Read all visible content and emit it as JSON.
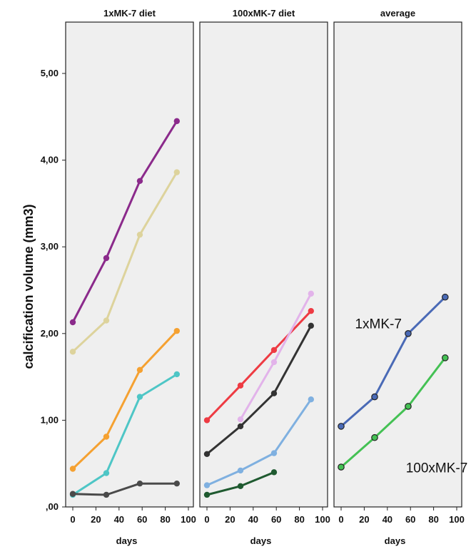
{
  "chart_data": {
    "type": "line",
    "ylabel": "calcification volume (mm3)",
    "ylim": [
      0,
      5.6
    ],
    "yticks": [
      0,
      1,
      2,
      3,
      4,
      5
    ],
    "ytick_labels": [
      ",00",
      "1,00",
      "2,00",
      "3,00",
      "4,00",
      "5,00"
    ],
    "xlim": [
      -5,
      103
    ],
    "xticks": [
      0,
      20,
      40,
      60,
      80,
      100
    ],
    "xtick_labels": [
      "0",
      "20",
      "40",
      "60",
      "80",
      "100"
    ],
    "grid": false,
    "panels": [
      {
        "title": "1xMK-7 diet",
        "xlabel": "days",
        "annotations": [],
        "series": [
          {
            "color": "#8b2a8b",
            "x": [
              0,
              29,
              58,
              90
            ],
            "y": [
              2.13,
              2.87,
              3.76,
              4.45
            ]
          },
          {
            "color": "#ddd39c",
            "x": [
              0,
              29,
              58,
              90
            ],
            "y": [
              1.79,
              2.15,
              3.14,
              3.86
            ]
          },
          {
            "color": "#f5a131",
            "x": [
              0,
              29,
              58,
              90
            ],
            "y": [
              0.44,
              0.81,
              1.58,
              2.03
            ]
          },
          {
            "color": "#4ec6c6",
            "x": [
              0,
              29,
              58,
              90
            ],
            "y": [
              0.14,
              0.39,
              1.27,
              1.53
            ]
          },
          {
            "color": "#4a4a4a",
            "x": [
              0,
              29,
              58,
              90
            ],
            "y": [
              0.15,
              0.14,
              0.27,
              0.27
            ]
          }
        ]
      },
      {
        "title": "100xMK-7 diet",
        "xlabel": "days",
        "annotations": [],
        "series": [
          {
            "color": "#ee3b43",
            "x": [
              0,
              29,
              58,
              90
            ],
            "y": [
              1.0,
              1.4,
              1.81,
              2.26
            ]
          },
          {
            "color": "#e2b3ea",
            "x": [
              29,
              58,
              90
            ],
            "y": [
              1.01,
              1.67,
              2.46
            ]
          },
          {
            "color": "#333333",
            "x": [
              0,
              29,
              58,
              90
            ],
            "y": [
              0.61,
              0.93,
              1.31,
              2.09
            ]
          },
          {
            "color": "#7fb0e0",
            "x": [
              0,
              29,
              58,
              90
            ],
            "y": [
              0.25,
              0.42,
              0.62,
              1.24
            ]
          },
          {
            "color": "#1f5a30",
            "x": [
              0,
              29,
              58
            ],
            "y": [
              0.14,
              0.24,
              0.4
            ]
          }
        ]
      },
      {
        "title": "average",
        "xlabel": "days",
        "annotations": [
          {
            "text": "1xMK-7",
            "x": 12,
            "y": 2.06
          },
          {
            "text": "100xMK-7",
            "x": 56,
            "y": 0.4
          }
        ],
        "series": [
          {
            "name": "1xMK-7",
            "color": "#4a6ab6",
            "x": [
              0,
              29,
              58,
              90
            ],
            "y": [
              0.93,
              1.27,
              2.0,
              2.42
            ]
          },
          {
            "name": "100xMK-7",
            "color": "#44c154",
            "x": [
              0,
              29,
              58,
              90
            ],
            "y": [
              0.46,
              0.8,
              1.16,
              1.72
            ]
          }
        ]
      }
    ]
  }
}
